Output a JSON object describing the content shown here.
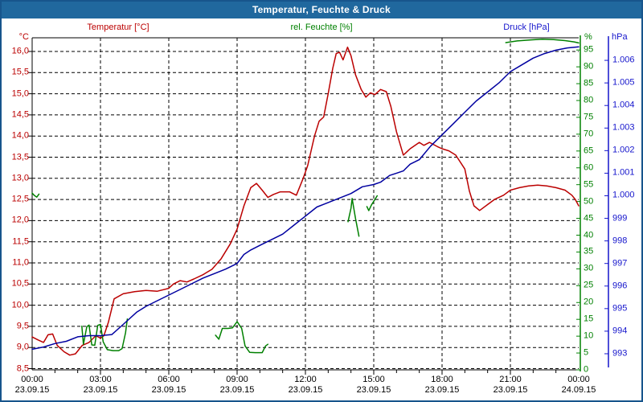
{
  "title_bar": {
    "title": "Temperatur, Feuchte & Druck"
  },
  "colors": {
    "temperature": "#bb0000",
    "humidity": "#008000",
    "pressure": "#0000a0",
    "pressure_label": "#1515cc",
    "grid": "#000000",
    "frame": "#17558c",
    "titlebar_bg": "#20689e"
  },
  "chart_data": {
    "type": "line",
    "title": "Temperatur, Feuchte & Druck",
    "grid": "dashed, horizontal every 0.5 °C, vertical every 3 h",
    "legend_position": "top header row",
    "series_headers": [
      {
        "label": "Temperatur [°C]",
        "color": "#bb0000"
      },
      {
        "label": "rel. Feuchte [%]",
        "color": "#008000"
      },
      {
        "label": "Druck [hPa]",
        "color": "#1515cc"
      }
    ],
    "axes": {
      "temperature": {
        "unit": "°C",
        "side": "left",
        "min": 8.5,
        "max": 16.0,
        "step": 0.5,
        "tick_labels": [
          "16,0",
          "15,5",
          "15,0",
          "14,5",
          "14,0",
          "13,5",
          "13,0",
          "12,5",
          "12,0",
          "11,5",
          "11,0",
          "10,5",
          "10,0",
          "9,5",
          "9,0",
          "8,5"
        ],
        "tick_values": [
          16,
          15.5,
          15,
          14.5,
          14,
          13.5,
          13,
          12.5,
          12,
          11.5,
          11,
          10.5,
          10,
          9.5,
          9,
          8.5
        ]
      },
      "humidity": {
        "unit": "%",
        "side": "right-inner",
        "min": 0,
        "max": 100,
        "step": 5,
        "tick_labels": [
          "95",
          "90",
          "85",
          "80",
          "75",
          "70",
          "65",
          "60",
          "55",
          "50",
          "45",
          "40",
          "35",
          "30",
          "25",
          "20",
          "15",
          "10",
          "5",
          "0"
        ],
        "tick_values": [
          95,
          90,
          85,
          80,
          75,
          70,
          65,
          60,
          55,
          50,
          45,
          40,
          35,
          30,
          25,
          20,
          15,
          10,
          5,
          0
        ]
      },
      "pressure": {
        "unit": "hPa",
        "side": "right-outer",
        "min": 992.5,
        "max": 1007,
        "step": 1,
        "tick_labels": [
          "1.006",
          "1.005",
          "1.004",
          "1.003",
          "1.002",
          "1.001",
          "1.000",
          "999",
          "998",
          "997",
          "996",
          "995",
          "994",
          "993"
        ],
        "tick_values": [
          1006,
          1005,
          1004,
          1003,
          1002,
          1001,
          1000,
          999,
          998,
          997,
          996,
          995,
          994,
          993
        ]
      },
      "time": {
        "min_hours": 0,
        "max_hours": 24,
        "major_step_hours": 3,
        "minor_step_hours": 1,
        "labels": [
          {
            "t": 0,
            "time": "00:00",
            "date": "23.09.15"
          },
          {
            "t": 3,
            "time": "03:00",
            "date": "23.09.15"
          },
          {
            "t": 6,
            "time": "06:00",
            "date": "23.09.15"
          },
          {
            "t": 9,
            "time": "09:00",
            "date": "23.09.15"
          },
          {
            "t": 12,
            "time": "12:00",
            "date": "23.09.15"
          },
          {
            "t": 15,
            "time": "15:00",
            "date": "23.09.15"
          },
          {
            "t": 18,
            "time": "18:00",
            "date": "23.09.15"
          },
          {
            "t": 21,
            "time": "21:00",
            "date": "23.09.15"
          },
          {
            "t": 24,
            "time": "00:00",
            "date": "24.09.15"
          }
        ]
      }
    },
    "series": [
      {
        "name": "Temperatur",
        "unit": "°C",
        "axis": "temperature",
        "color": "#bb0000",
        "points": [
          [
            0,
            9.25
          ],
          [
            0.25,
            9.18
          ],
          [
            0.5,
            9.12
          ],
          [
            0.7,
            9.3
          ],
          [
            0.9,
            9.32
          ],
          [
            1.1,
            9.05
          ],
          [
            1.4,
            8.9
          ],
          [
            1.65,
            8.82
          ],
          [
            1.9,
            8.85
          ],
          [
            2.2,
            9.05
          ],
          [
            2.5,
            9.12
          ],
          [
            2.8,
            9.28
          ],
          [
            3.0,
            9.22
          ],
          [
            3.15,
            9.28
          ],
          [
            3.35,
            9.6
          ],
          [
            3.6,
            10.15
          ],
          [
            4.0,
            10.27
          ],
          [
            4.5,
            10.32
          ],
          [
            5.0,
            10.35
          ],
          [
            5.5,
            10.33
          ],
          [
            6.0,
            10.4
          ],
          [
            6.2,
            10.5
          ],
          [
            6.5,
            10.58
          ],
          [
            6.8,
            10.55
          ],
          [
            7.1,
            10.62
          ],
          [
            7.5,
            10.72
          ],
          [
            7.9,
            10.85
          ],
          [
            8.3,
            11.1
          ],
          [
            8.7,
            11.45
          ],
          [
            9.0,
            11.8
          ],
          [
            9.3,
            12.35
          ],
          [
            9.6,
            12.78
          ],
          [
            9.85,
            12.88
          ],
          [
            10.1,
            12.72
          ],
          [
            10.35,
            12.55
          ],
          [
            10.6,
            12.62
          ],
          [
            10.9,
            12.68
          ],
          [
            11.3,
            12.68
          ],
          [
            11.6,
            12.6
          ],
          [
            11.9,
            13.0
          ],
          [
            12.1,
            13.3
          ],
          [
            12.4,
            14.0
          ],
          [
            12.6,
            14.35
          ],
          [
            12.8,
            14.45
          ],
          [
            13.0,
            15.0
          ],
          [
            13.2,
            15.6
          ],
          [
            13.35,
            15.95
          ],
          [
            13.5,
            15.98
          ],
          [
            13.65,
            15.8
          ],
          [
            13.85,
            16.1
          ],
          [
            14.0,
            15.9
          ],
          [
            14.2,
            15.45
          ],
          [
            14.45,
            15.1
          ],
          [
            14.65,
            14.92
          ],
          [
            14.85,
            15.02
          ],
          [
            15.05,
            14.98
          ],
          [
            15.3,
            15.1
          ],
          [
            15.55,
            15.05
          ],
          [
            15.75,
            14.7
          ],
          [
            16.0,
            14.1
          ],
          [
            16.3,
            13.55
          ],
          [
            16.6,
            13.7
          ],
          [
            17.0,
            13.85
          ],
          [
            17.2,
            13.78
          ],
          [
            17.45,
            13.85
          ],
          [
            17.8,
            13.75
          ],
          [
            18.0,
            13.7
          ],
          [
            18.3,
            13.65
          ],
          [
            18.6,
            13.55
          ],
          [
            19.0,
            13.22
          ],
          [
            19.2,
            12.7
          ],
          [
            19.4,
            12.35
          ],
          [
            19.65,
            12.24
          ],
          [
            20.0,
            12.38
          ],
          [
            20.3,
            12.5
          ],
          [
            20.7,
            12.6
          ],
          [
            21.0,
            12.72
          ],
          [
            21.4,
            12.78
          ],
          [
            21.8,
            12.82
          ],
          [
            22.2,
            12.84
          ],
          [
            22.6,
            12.82
          ],
          [
            23.0,
            12.78
          ],
          [
            23.4,
            12.72
          ],
          [
            23.7,
            12.6
          ],
          [
            23.85,
            12.5
          ],
          [
            24,
            12.35
          ]
        ]
      },
      {
        "name": "rel. Feuchte",
        "unit": "%",
        "axis": "humidity",
        "color": "#008000",
        "segments": [
          [
            [
              0,
              52.5
            ],
            [
              0.1,
              51.8
            ],
            [
              0.2,
              51.3
            ],
            [
              0.3,
              52.2
            ]
          ],
          [
            [
              2.18,
              13.0
            ],
            [
              2.25,
              7.6
            ],
            [
              2.4,
              12.8
            ],
            [
              2.5,
              13.3
            ],
            [
              2.62,
              7.4
            ],
            [
              2.75,
              7.3
            ],
            [
              2.88,
              13.2
            ],
            [
              3.0,
              13.5
            ],
            [
              3.12,
              8.3
            ],
            [
              3.3,
              6.0
            ],
            [
              3.55,
              5.7
            ],
            [
              3.8,
              5.7
            ],
            [
              3.95,
              6.3
            ],
            [
              4.1,
              11.0
            ],
            [
              4.18,
              15.1
            ]
          ],
          [
            [
              8.05,
              10.3
            ],
            [
              8.2,
              9.1
            ],
            [
              8.35,
              12.3
            ],
            [
              8.6,
              12.3
            ],
            [
              8.8,
              12.5
            ],
            [
              9.0,
              14.3
            ],
            [
              9.2,
              12.3
            ],
            [
              9.35,
              7.1
            ],
            [
              9.55,
              5.2
            ],
            [
              9.8,
              5.1
            ],
            [
              10.1,
              5.1
            ],
            [
              10.25,
              7.1
            ],
            [
              10.35,
              7.6
            ]
          ],
          [
            [
              13.87,
              44.0
            ],
            [
              14.0,
              48.0
            ],
            [
              14.05,
              50.9
            ],
            [
              14.2,
              45.0
            ],
            [
              14.35,
              39.7
            ]
          ],
          [
            [
              14.7,
              48.5
            ],
            [
              14.78,
              47.3
            ],
            [
              14.9,
              49.0
            ],
            [
              15.15,
              51.7
            ]
          ],
          [
            [
              20.8,
              97.2
            ],
            [
              21.3,
              97.7
            ],
            [
              21.9,
              98.0
            ],
            [
              22.4,
              98.2
            ],
            [
              22.9,
              98.1
            ],
            [
              23.4,
              97.8
            ],
            [
              23.8,
              97.4
            ],
            [
              24,
              97.1
            ]
          ]
        ]
      },
      {
        "name": "Druck",
        "unit": "hPa",
        "axis": "pressure",
        "color": "#0000a0",
        "points": [
          [
            0,
            993.2
          ],
          [
            0.5,
            993.3
          ],
          [
            1.0,
            993.45
          ],
          [
            1.5,
            993.55
          ],
          [
            2.0,
            993.75
          ],
          [
            2.5,
            993.8
          ],
          [
            3.0,
            993.8
          ],
          [
            3.5,
            993.85
          ],
          [
            4.0,
            994.3
          ],
          [
            4.6,
            994.85
          ],
          [
            5.0,
            995.1
          ],
          [
            5.5,
            995.35
          ],
          [
            6.0,
            995.6
          ],
          [
            6.5,
            995.85
          ],
          [
            7.0,
            996.1
          ],
          [
            7.5,
            996.35
          ],
          [
            8.0,
            996.55
          ],
          [
            8.5,
            996.75
          ],
          [
            9.0,
            997.0
          ],
          [
            9.3,
            997.4
          ],
          [
            9.6,
            997.6
          ],
          [
            10.0,
            997.8
          ],
          [
            10.5,
            998.05
          ],
          [
            11.0,
            998.3
          ],
          [
            11.5,
            998.7
          ],
          [
            12.0,
            999.1
          ],
          [
            12.5,
            999.5
          ],
          [
            13.0,
            999.7
          ],
          [
            13.5,
            999.9
          ],
          [
            14.0,
            1000.1
          ],
          [
            14.5,
            1000.4
          ],
          [
            15.0,
            1000.5
          ],
          [
            15.3,
            1000.6
          ],
          [
            15.7,
            1000.9
          ],
          [
            16.0,
            1001.0
          ],
          [
            16.3,
            1001.1
          ],
          [
            16.6,
            1001.4
          ],
          [
            17.0,
            1001.6
          ],
          [
            17.5,
            1002.2
          ],
          [
            18.0,
            1002.7
          ],
          [
            18.5,
            1003.2
          ],
          [
            19.0,
            1003.7
          ],
          [
            19.5,
            1004.2
          ],
          [
            20.0,
            1004.6
          ],
          [
            20.5,
            1005.0
          ],
          [
            21.0,
            1005.5
          ],
          [
            21.5,
            1005.8
          ],
          [
            22.0,
            1006.1
          ],
          [
            22.5,
            1006.3
          ],
          [
            23.0,
            1006.45
          ],
          [
            23.5,
            1006.55
          ],
          [
            24,
            1006.6
          ]
        ]
      }
    ]
  }
}
